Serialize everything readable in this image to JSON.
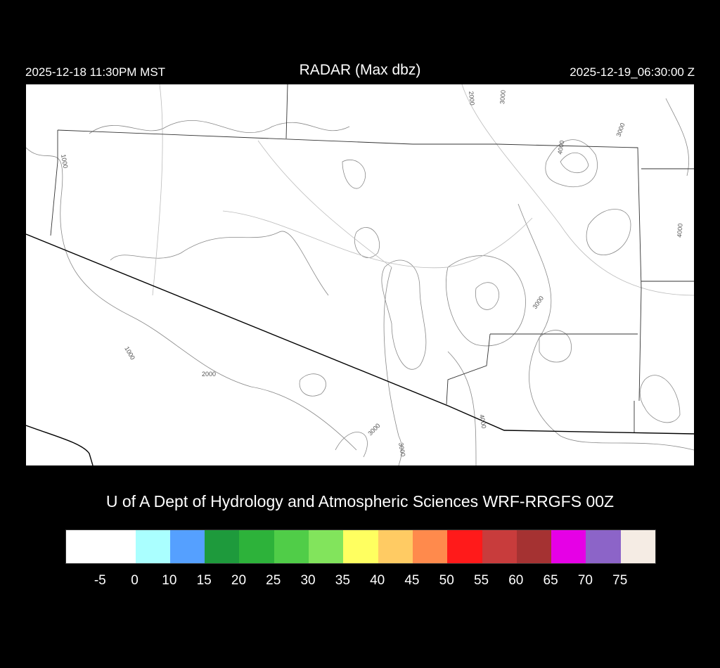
{
  "header": {
    "title": "RADAR (Max dbz)",
    "local_time": "2025-12-18 11:30PM MST",
    "utc_time": "2025-12-19_06:30:00 Z"
  },
  "credit": "U of A Dept of Hydrology and Atmospheric Sciences WRF-RRGFS 00Z",
  "map": {
    "contour_labels": [
      "1000",
      "1000",
      "2000",
      "3000",
      "3000",
      "3000",
      "3000",
      "3000",
      "4000",
      "4000",
      "4000",
      "2000"
    ],
    "radar_echoes": "none"
  },
  "colorbar": {
    "colors": [
      "#ffffff",
      "#ffffff",
      "#aaffff",
      "#55a0ff",
      "#1e9a3c",
      "#2db23a",
      "#50cd48",
      "#82e45c",
      "#ffff60",
      "#ffcb63",
      "#ff8a4c",
      "#ff1a1a",
      "#c83c3c",
      "#a53232",
      "#e600e6",
      "#8c64c8",
      "#f5ece4"
    ],
    "labels": [
      "-5",
      "0",
      "10",
      "15",
      "20",
      "25",
      "30",
      "35",
      "40",
      "45",
      "50",
      "55",
      "60",
      "65",
      "70",
      "75"
    ]
  }
}
